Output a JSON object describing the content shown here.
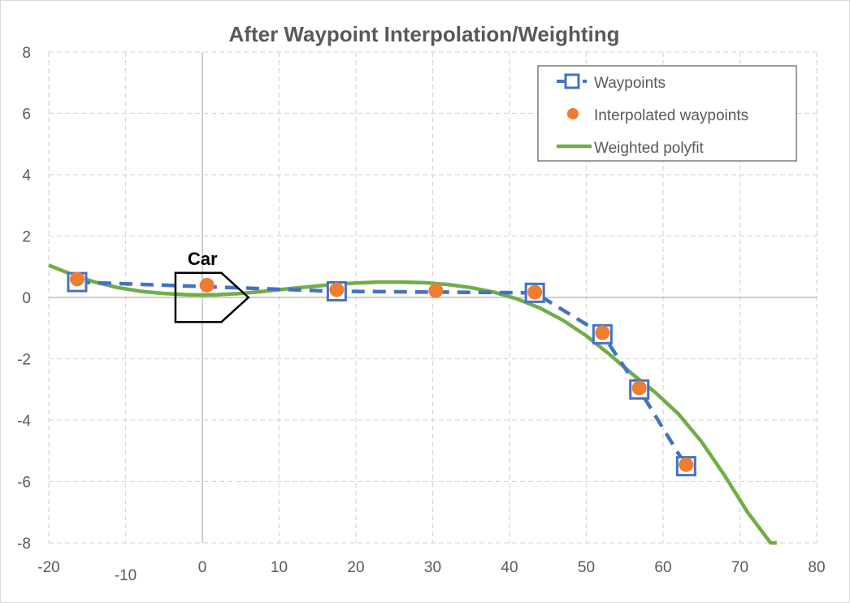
{
  "chart_data": {
    "type": "scatter",
    "title": "After Waypoint Interpolation/Weighting",
    "xlabel": "",
    "ylabel": "",
    "xlim": [
      -20,
      80
    ],
    "ylim": [
      -8,
      8
    ],
    "x_ticks": [
      "-20",
      "-10",
      "0",
      "10",
      "20",
      "30",
      "40",
      "50",
      "60",
      "70",
      "80"
    ],
    "y_ticks": [
      "8",
      "6",
      "4",
      "2",
      "0",
      "-2",
      "-4",
      "-6",
      "-8"
    ],
    "grid": true,
    "legend_position": "top-right",
    "series": [
      {
        "name": "Waypoints",
        "style": "dashed line with square markers",
        "color": "#4472C4",
        "x": [
          -16.3,
          17.5,
          43.3,
          52.1,
          56.9,
          63
        ],
        "y": [
          0.5,
          0.2,
          0.15,
          -1.2,
          -3,
          -5.5
        ]
      },
      {
        "name": "Interpolated waypoints",
        "style": "circle markers",
        "color": "#ED7D31",
        "x": [
          -16.3,
          0.6,
          17.5,
          30.4,
          43.3,
          52.1,
          56.9,
          63
        ],
        "y": [
          0.6,
          0.4,
          0.25,
          0.22,
          0.17,
          -1.15,
          -2.95,
          -5.45
        ]
      },
      {
        "name": "Weighted polyfit",
        "style": "solid line",
        "color": "#70AD47",
        "x": [
          -20,
          -17,
          -14,
          -11,
          -8,
          -5,
          -2,
          0,
          2,
          5,
          8,
          11,
          14,
          17,
          20,
          23,
          26,
          29,
          32,
          35,
          38,
          41,
          44,
          47,
          50,
          53,
          56,
          59,
          62,
          65,
          68,
          71,
          74,
          74.8
        ],
        "y": [
          1.05,
          0.75,
          0.5,
          0.32,
          0.2,
          0.13,
          0.09,
          0.08,
          0.09,
          0.13,
          0.2,
          0.28,
          0.35,
          0.42,
          0.47,
          0.5,
          0.5,
          0.48,
          0.42,
          0.32,
          0.17,
          -0.05,
          -0.35,
          -0.75,
          -1.25,
          -1.85,
          -2.5,
          -3.1,
          -3.8,
          -4.7,
          -5.8,
          -7.0,
          -8.0,
          -8.0
        ]
      }
    ],
    "annotations": [
      {
        "text": "Car",
        "shape": "pentagon arrow pointing right",
        "x_range": [
          -3.5,
          6
        ],
        "y_range": [
          -0.8,
          0.8
        ]
      }
    ]
  }
}
